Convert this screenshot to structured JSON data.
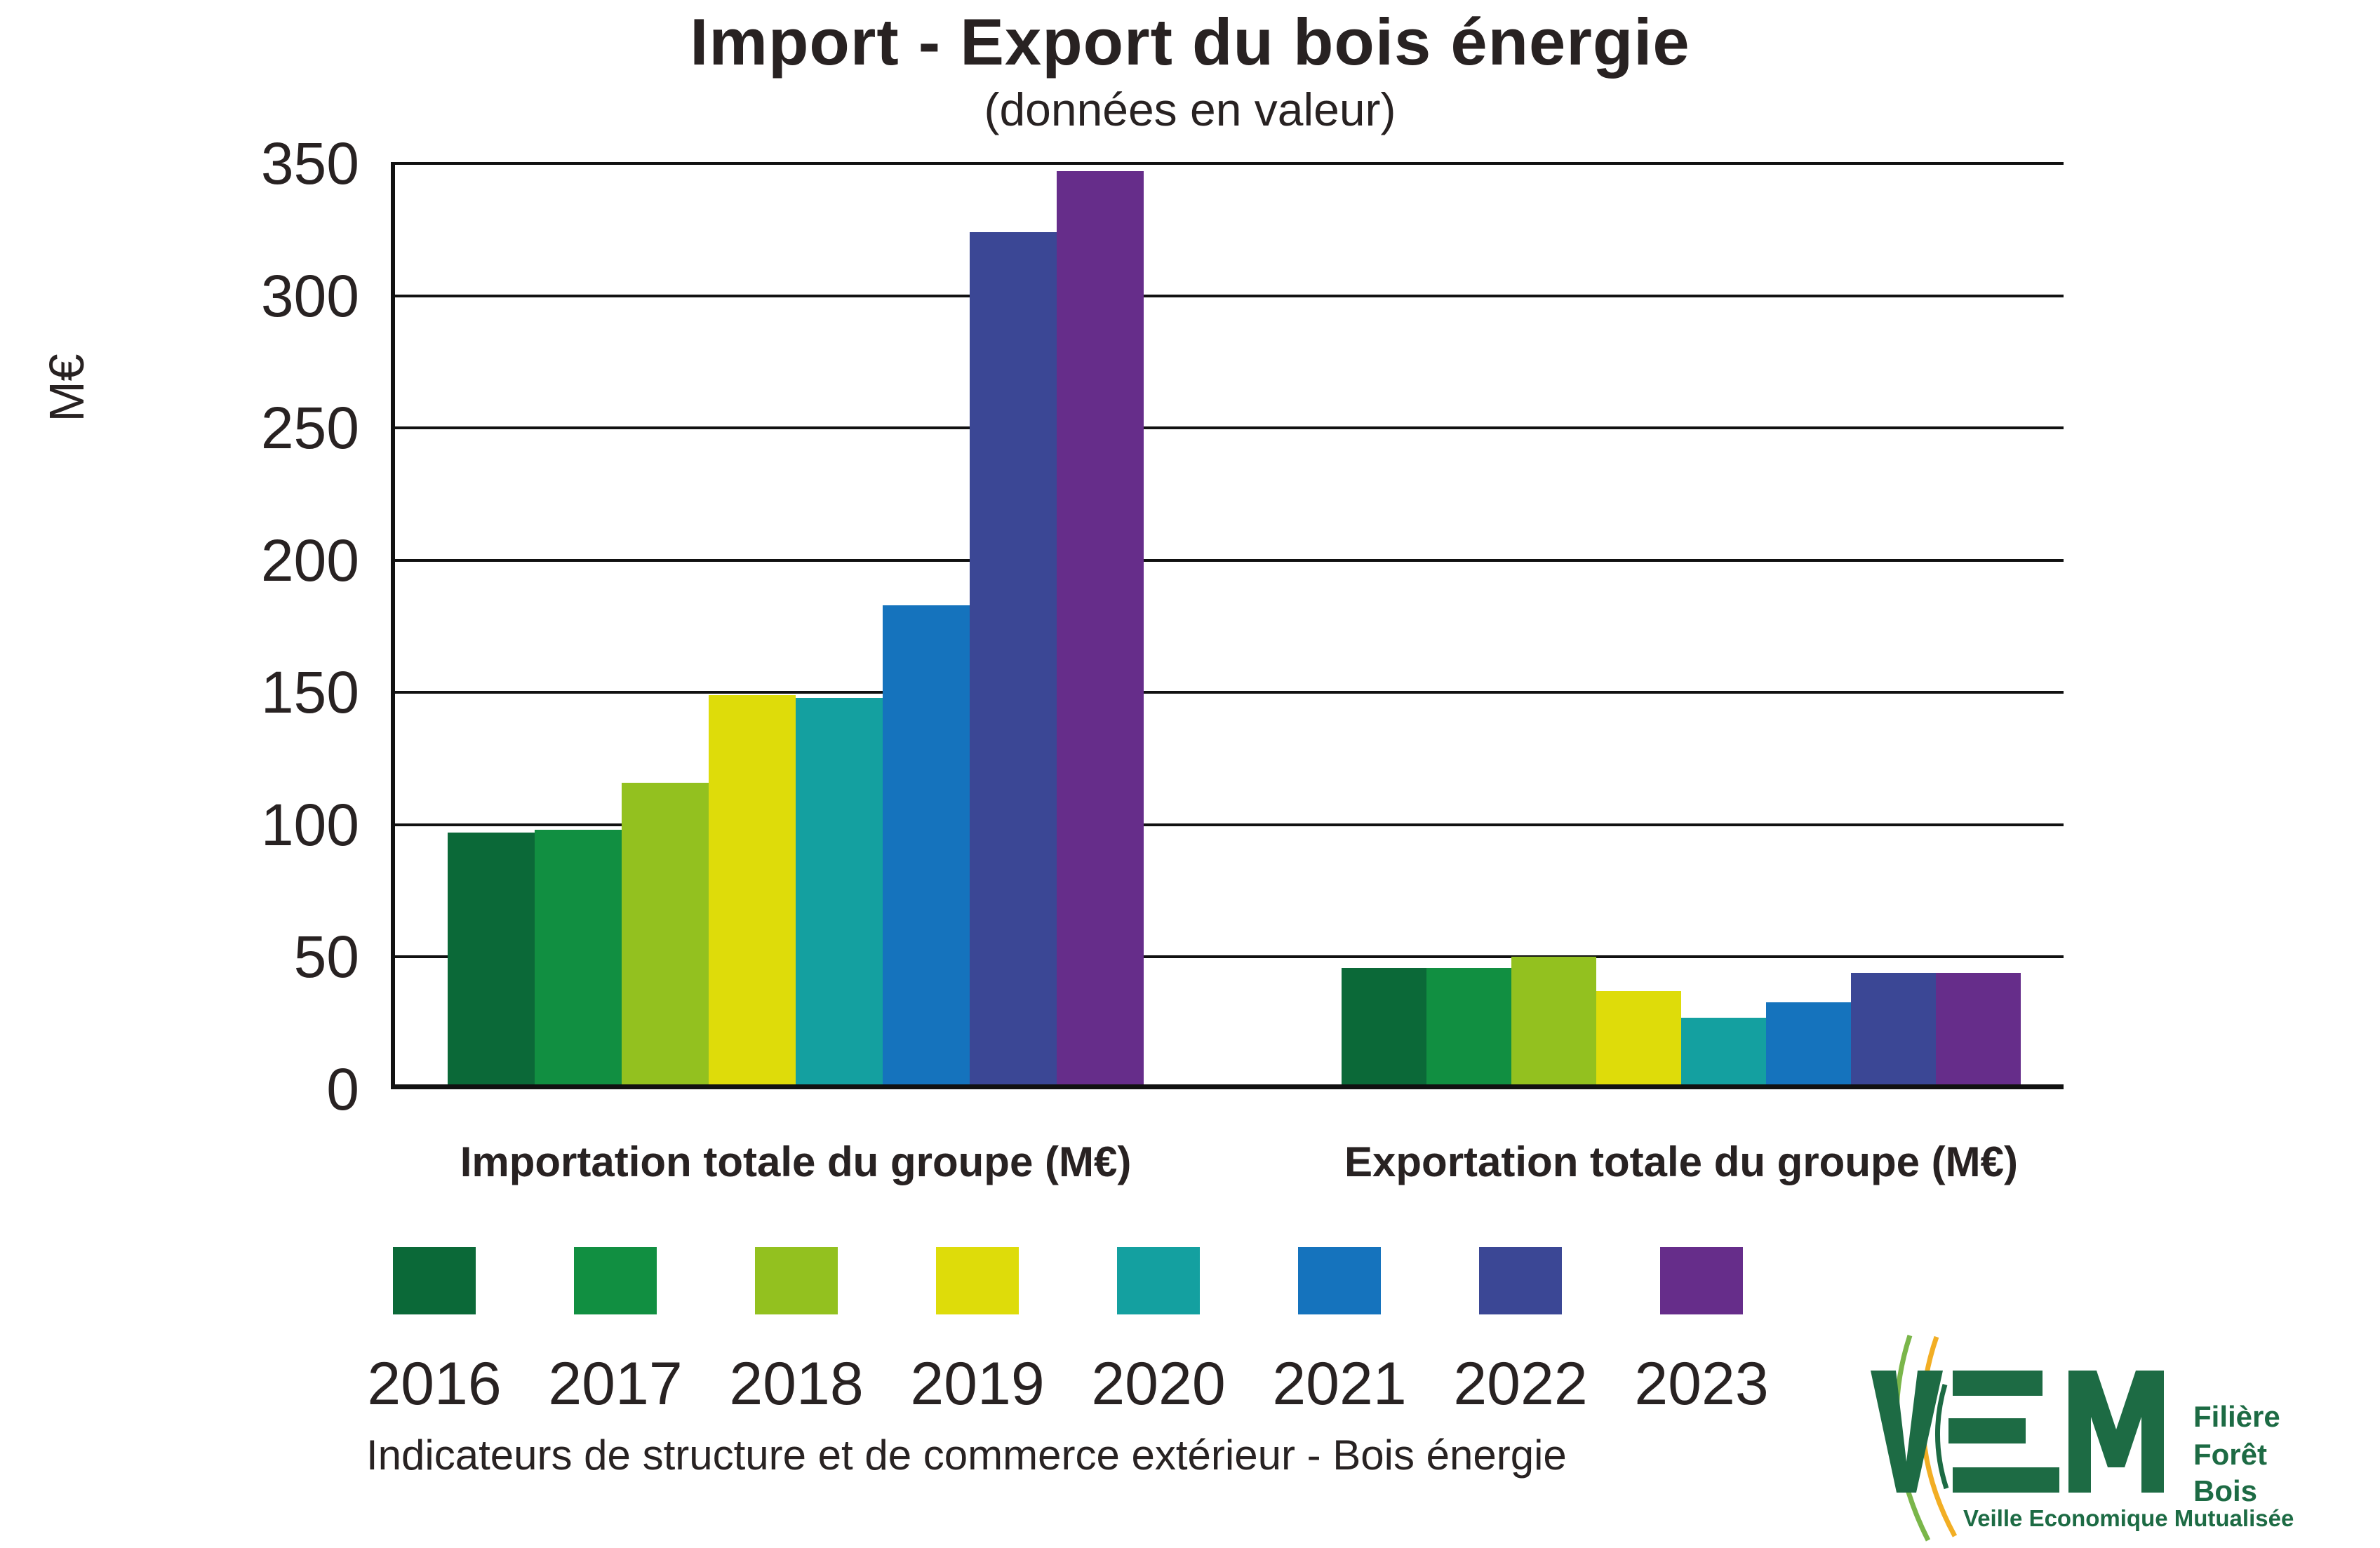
{
  "title": "Import - Export du bois énergie",
  "subtitle": "(données en valeur)",
  "y_axis": {
    "label": "M€",
    "ticks": [
      0,
      50,
      100,
      150,
      200,
      250,
      300,
      350
    ]
  },
  "chart_data": {
    "type": "bar",
    "title": "Import - Export du bois énergie (données en valeur)",
    "xlabel": "",
    "ylabel": "M€",
    "ylim": [
      0,
      350
    ],
    "grid": true,
    "legend_position": "bottom",
    "categories": [
      "Importation totale du groupe (M€)",
      "Exportation totale du groupe (M€)"
    ],
    "series": [
      {
        "name": "2016",
        "color": "#0b6938",
        "values": [
          97,
          46
        ]
      },
      {
        "name": "2017",
        "color": "#118f41",
        "values": [
          98,
          46
        ]
      },
      {
        "name": "2018",
        "color": "#93c11f",
        "values": [
          116,
          50
        ]
      },
      {
        "name": "2019",
        "color": "#dedc0a",
        "values": [
          149,
          37
        ]
      },
      {
        "name": "2020",
        "color": "#14a0a0",
        "values": [
          148,
          27
        ]
      },
      {
        "name": "2021",
        "color": "#1573bd",
        "values": [
          183,
          33
        ]
      },
      {
        "name": "2022",
        "color": "#3b4795",
        "values": [
          324,
          44
        ]
      },
      {
        "name": "2023",
        "color": "#662d8a",
        "values": [
          347,
          44
        ]
      }
    ]
  },
  "footer": {
    "note": "Indicateurs de structure et de commerce extérieur - Bois énergie"
  },
  "logo": {
    "acronym": "VEM",
    "lines": [
      "Filière",
      "Forêt",
      "Bois"
    ],
    "tagline": "Veille Economique Mutualisée"
  }
}
